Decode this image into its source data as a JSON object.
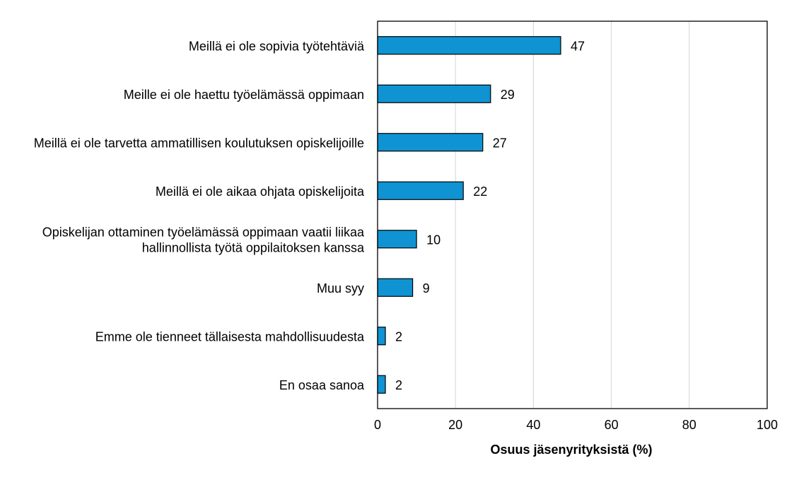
{
  "chart_data": {
    "type": "bar",
    "orientation": "horizontal",
    "categories": [
      [
        "Meillä ei ole sopivia työtehtäviä"
      ],
      [
        "Meille ei ole haettu työelämässä oppimaan"
      ],
      [
        "Meillä ei ole tarvetta ammatillisen koulutuksen opiskelijoille"
      ],
      [
        "Meillä ei ole aikaa ohjata opiskelijoita"
      ],
      [
        "Opiskelijan ottaminen työelämässä oppimaan vaatii liikaa",
        "hallinnollista työtä oppilaitoksen kanssa"
      ],
      [
        "Muu syy"
      ],
      [
        "Emme ole tienneet tällaisesta mahdollisuudesta"
      ],
      [
        "En osaa sanoa"
      ]
    ],
    "values": [
      47,
      29,
      27,
      22,
      10,
      9,
      2,
      2
    ],
    "data_labels": [
      "47",
      "29",
      "27",
      "22",
      "10",
      "9",
      "2",
      "2"
    ],
    "xlabel": "Osuus jäsenyrityksistä (%)",
    "ylabel": "",
    "xlim": [
      0,
      100
    ],
    "xticks": [
      0,
      20,
      40,
      60,
      80,
      100
    ],
    "grid": "vertical",
    "legend": "none",
    "colors": {
      "bar": "#0f93d2",
      "bar_edge": "#000000",
      "grid": "#d4d4d4",
      "frame": "#000000"
    }
  }
}
